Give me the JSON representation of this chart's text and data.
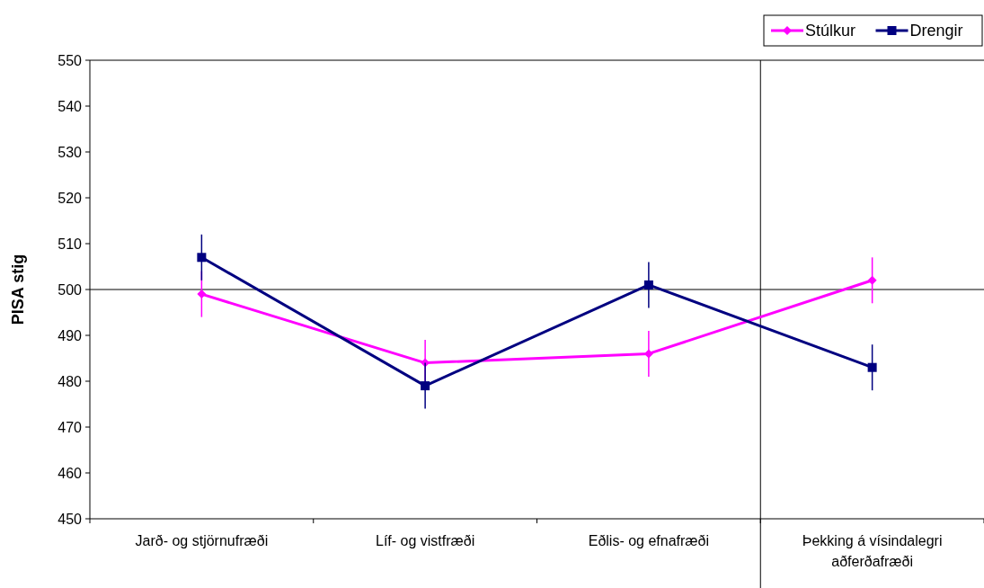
{
  "chart_data": {
    "type": "line",
    "ylabel": "PISA stig",
    "categories": [
      "Jarð- og stjörnufræði",
      "Líf- og vistfræði",
      "Eðlis- og efnafræði",
      "Þekking á vísindalegri aðferðafræði"
    ],
    "series": [
      {
        "name": "Stúlkur",
        "color": "#ff00ff",
        "marker": "diamond",
        "values": [
          499,
          484,
          486,
          502
        ],
        "errors": [
          5,
          5,
          5,
          5
        ]
      },
      {
        "name": "Drengir",
        "color": "#000080",
        "marker": "square",
        "values": [
          507,
          479,
          501,
          483
        ],
        "errors": [
          5,
          5,
          5,
          5
        ]
      }
    ],
    "ylim": [
      450,
      550
    ],
    "yticks": [
      450,
      460,
      470,
      480,
      490,
      500,
      510,
      520,
      530,
      540,
      550
    ],
    "ref_lines": [
      {
        "axis": "y",
        "value": 500
      }
    ],
    "legend": "top right",
    "grid": false
  }
}
